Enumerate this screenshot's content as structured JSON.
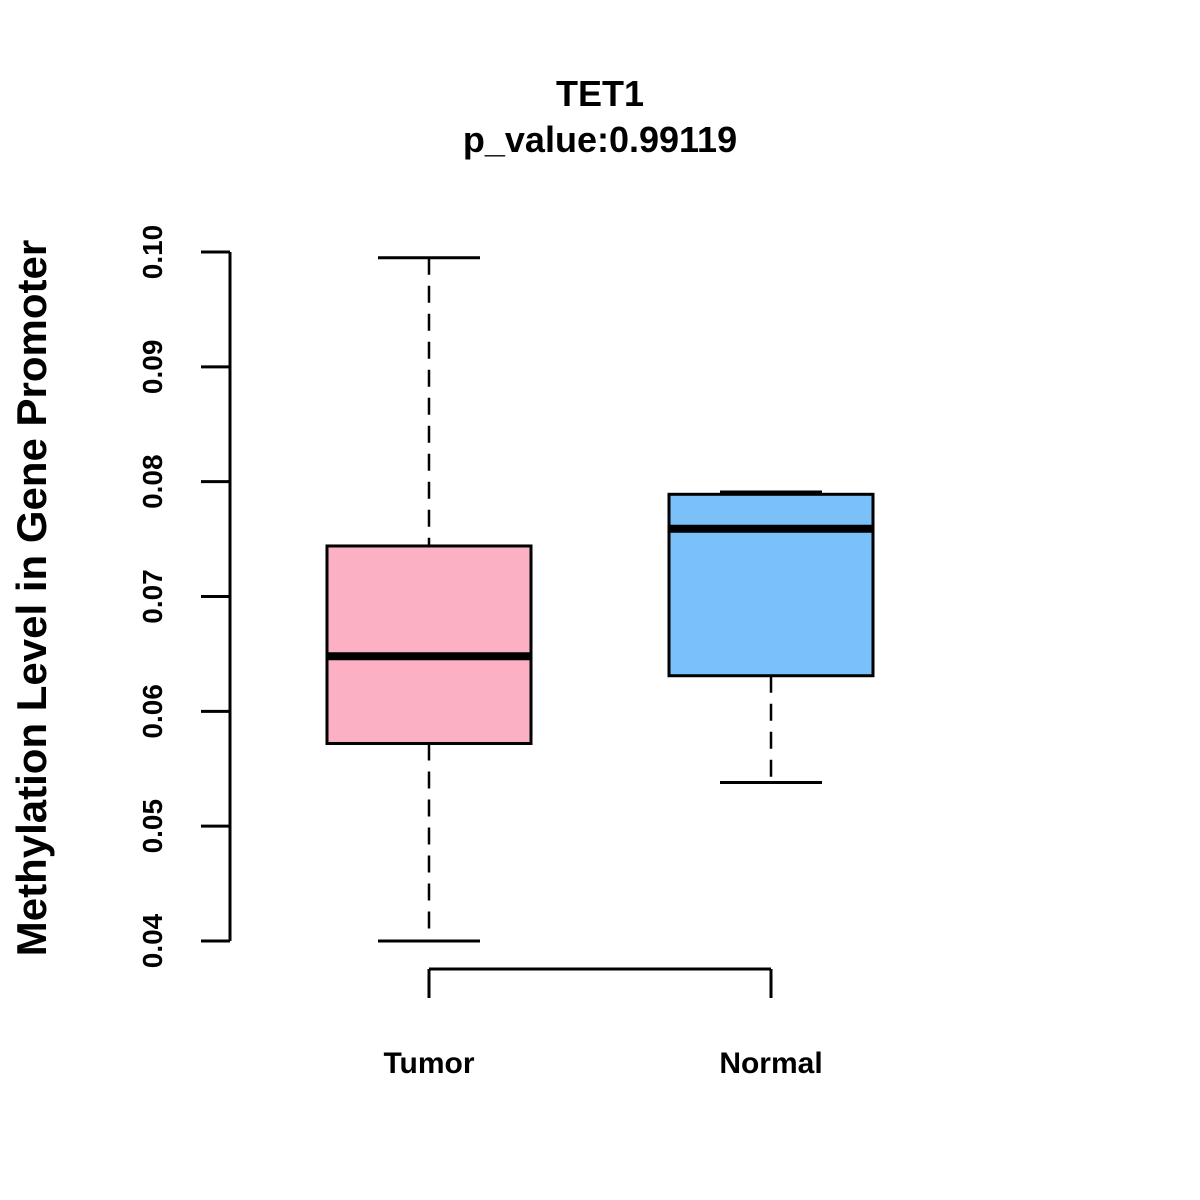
{
  "chart_data": {
    "type": "boxplot",
    "title": "TET1",
    "subtitle": "p_value:0.99119",
    "xlabel": "",
    "ylabel": "Methylation Level in Gene Promoter",
    "ylim": [
      0.04,
      0.1
    ],
    "yticks": [
      0.04,
      0.05,
      0.06,
      0.07,
      0.08,
      0.09,
      0.1
    ],
    "ytick_labels": [
      "0.04",
      "0.05",
      "0.06",
      "0.07",
      "0.08",
      "0.09",
      "0.10"
    ],
    "categories": [
      "Tumor",
      "Normal"
    ],
    "boxes": [
      {
        "name": "Tumor",
        "min": 0.04,
        "q1": 0.0572,
        "median": 0.0648,
        "q3": 0.0744,
        "max": 0.0995,
        "color": "#FBB1C3"
      },
      {
        "name": "Normal",
        "min": 0.0538,
        "q1": 0.0631,
        "median": 0.0759,
        "q3": 0.0789,
        "max": 0.0791,
        "color": "#79C1F8"
      }
    ],
    "grid": false,
    "legend": "none"
  }
}
